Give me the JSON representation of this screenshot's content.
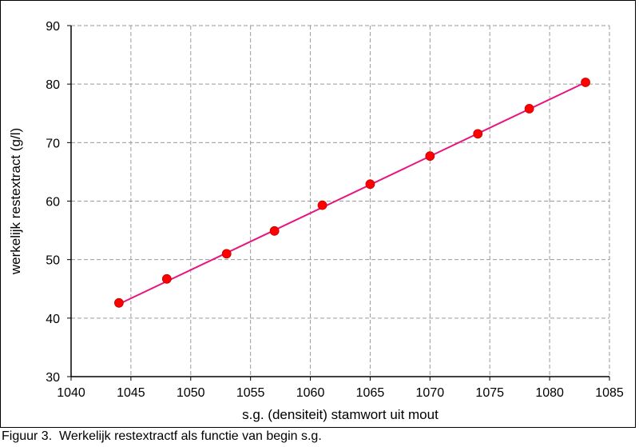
{
  "caption": "Figuur 3.  Werkelijk restextractf als functie van begin s.g.",
  "colors": {
    "line": "#e8157f",
    "marker": "#ff0000",
    "grid": "#9a9a9a"
  },
  "chart_data": {
    "type": "scatter",
    "title": "",
    "xlabel": "s.g. (densiteit) stamwort uit mout",
    "ylabel": "werkelijk restextract (g/l)",
    "xlim": [
      1040,
      1085
    ],
    "ylim": [
      30,
      90
    ],
    "xticks": [
      1040,
      1045,
      1050,
      1055,
      1060,
      1065,
      1070,
      1075,
      1080,
      1085
    ],
    "yticks": [
      30,
      40,
      50,
      60,
      70,
      80,
      90
    ],
    "grid": true,
    "legend": "none",
    "series": [
      {
        "points": [
          [
            1044,
            42.6
          ],
          [
            1048,
            46.7
          ],
          [
            1053,
            51.0
          ],
          [
            1057,
            54.9
          ],
          [
            1061,
            59.3
          ],
          [
            1065,
            62.9
          ],
          [
            1070,
            67.7
          ],
          [
            1074,
            71.5
          ],
          [
            1078.3,
            75.8
          ],
          [
            1083,
            80.3
          ]
        ]
      }
    ],
    "trendline": {
      "x": [
        1044,
        1083
      ],
      "y": [
        42.4,
        80.3
      ]
    }
  }
}
